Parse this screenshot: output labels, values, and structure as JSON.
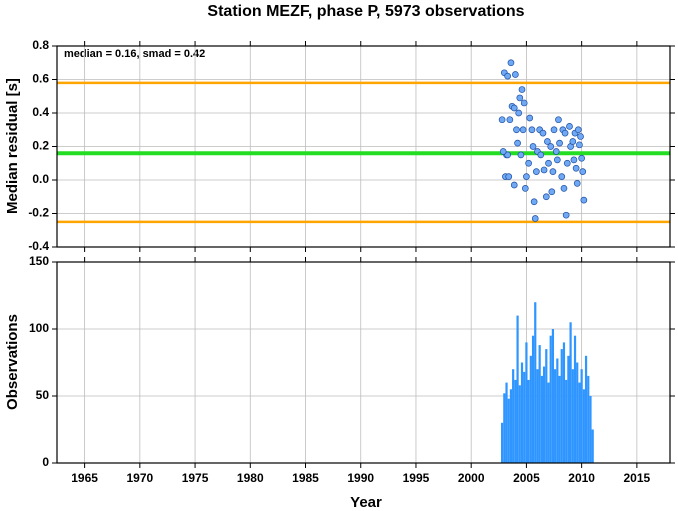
{
  "chart_data": [
    {
      "type": "scatter",
      "title": "Station MEZF, phase P, 5973 observations",
      "ylabel": "Median residual [s]",
      "annotation": "median = 0.16, smad = 0.42",
      "xlim": [
        1962.5,
        2018
      ],
      "xticks": [
        1965,
        1970,
        1975,
        1980,
        1985,
        1990,
        1995,
        2000,
        2005,
        2010,
        2015
      ],
      "ylim": [
        -0.4,
        0.8
      ],
      "yticks": [
        -0.4,
        -0.2,
        {
          "value": 0,
          "label": "0.0"
        },
        0.2,
        0.4,
        0.6,
        0.8
      ],
      "grid": true,
      "hlines": [
        {
          "value": 0.58,
          "color": "#ffa500"
        },
        {
          "value": 0.16,
          "color": "#22dd22"
        },
        {
          "value": -0.25,
          "color": "#ffa500"
        }
      ],
      "color": "#6fa8f5",
      "x": [
        2002.8,
        2003.0,
        2003.3,
        2003.6,
        2004.0,
        2003.2,
        2003.1,
        2003.4,
        2003.5,
        2003.7,
        2003.9,
        2004.1,
        2004.3,
        2004.4,
        2004.6,
        2004.8,
        2004.2,
        2003.9,
        2004.5,
        2004.7,
        2004.9,
        2005.0,
        2005.2,
        2005.3,
        2005.5,
        2005.6,
        2005.7,
        2005.8,
        2005.9,
        2006.0,
        2006.2,
        2006.3,
        2006.5,
        2006.6,
        2006.8,
        2006.9,
        2007.0,
        2007.2,
        2007.3,
        2007.4,
        2007.5,
        2007.7,
        2007.8,
        2007.9,
        2008.0,
        2008.2,
        2008.3,
        2008.4,
        2008.5,
        2008.6,
        2008.7,
        2008.9,
        2009.0,
        2009.2,
        2009.3,
        2009.4,
        2009.5,
        2009.6,
        2009.7,
        2009.8,
        2009.9,
        2010.0,
        2010.2,
        2010.1,
        2003.3,
        2002.9
      ],
      "values": [
        0.36,
        0.64,
        0.62,
        0.7,
        0.63,
        0.15,
        0.02,
        0.02,
        0.36,
        0.44,
        0.43,
        0.3,
        0.4,
        0.49,
        0.54,
        0.46,
        0.22,
        -0.03,
        0.15,
        0.3,
        -0.05,
        0.02,
        0.1,
        0.37,
        0.3,
        0.2,
        -0.13,
        -0.23,
        0.05,
        0.17,
        0.3,
        0.15,
        0.28,
        0.06,
        -0.1,
        0.23,
        0.1,
        0.2,
        -0.07,
        0.05,
        0.3,
        0.17,
        0.12,
        0.36,
        0.22,
        0.02,
        0.3,
        -0.05,
        0.28,
        -0.21,
        0.1,
        0.32,
        0.2,
        0.23,
        0.12,
        0.28,
        0.07,
        -0.02,
        0.3,
        0.21,
        0.26,
        0.13,
        -0.12,
        0.05,
        0.15,
        0.17
      ]
    },
    {
      "type": "bar",
      "xlabel": "Year",
      "ylabel": "Observations",
      "xlim": [
        1962.5,
        2018
      ],
      "xticks": [
        1965,
        1970,
        1975,
        1980,
        1985,
        1990,
        1995,
        2000,
        2005,
        2010,
        2015
      ],
      "ylim": [
        0,
        150
      ],
      "yticks": [
        0,
        50,
        100,
        150
      ],
      "grid": true,
      "color": "#2f95ff",
      "x": [
        2002.8,
        2003.0,
        2003.2,
        2003.4,
        2003.6,
        2003.8,
        2004.0,
        2004.2,
        2004.4,
        2004.6,
        2004.8,
        2005.0,
        2005.2,
        2005.4,
        2005.6,
        2005.8,
        2006.0,
        2006.2,
        2006.4,
        2006.6,
        2006.8,
        2007.0,
        2007.2,
        2007.4,
        2007.6,
        2007.8,
        2008.0,
        2008.2,
        2008.4,
        2008.6,
        2008.8,
        2009.0,
        2009.2,
        2009.4,
        2009.6,
        2009.8,
        2010.0,
        2010.2,
        2010.4,
        2010.6,
        2010.8,
        2011.0
      ],
      "values": [
        30,
        52,
        60,
        48,
        55,
        70,
        62,
        110,
        58,
        75,
        68,
        90,
        62,
        80,
        95,
        120,
        70,
        88,
        65,
        72,
        85,
        60,
        95,
        100,
        70,
        78,
        65,
        85,
        90,
        62,
        80,
        105,
        70,
        95,
        75,
        60,
        70,
        55,
        80,
        65,
        50,
        25
      ]
    }
  ]
}
